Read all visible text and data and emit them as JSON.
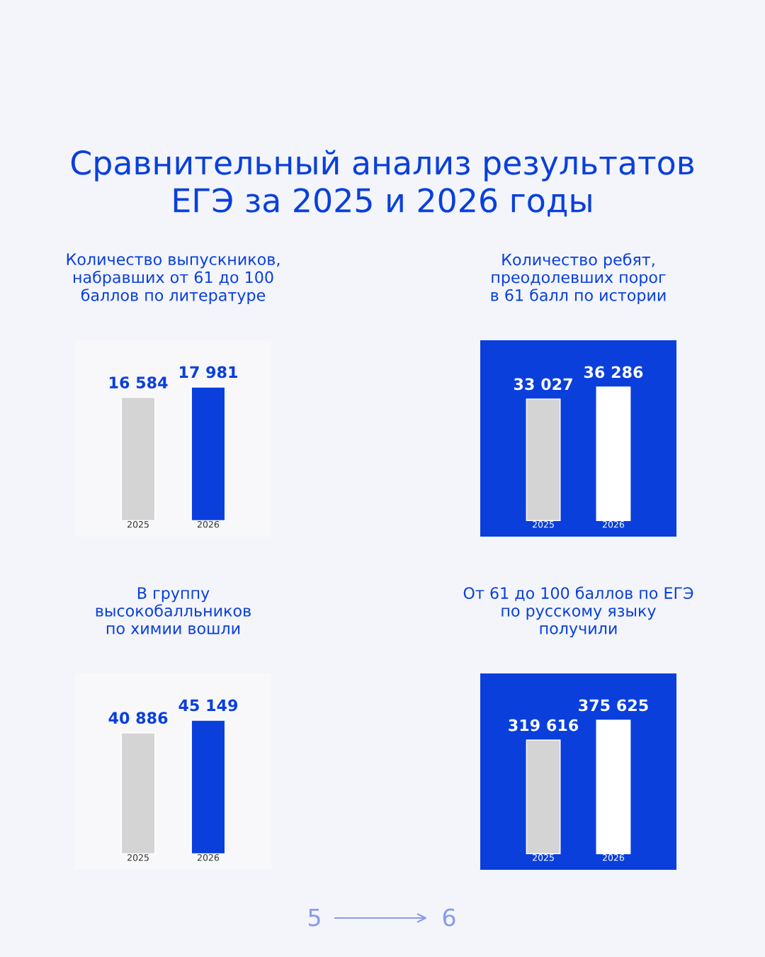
{
  "chart_data": [
    {
      "type": "other",
      "title": "Сравнительный анализ результатов\nЕГЭ за 2025 и 2026 годы",
      "annotations": [
        "5",
        "6"
      ]
    },
    {
      "type": "bar",
      "title": "Количество выпускников,\nнабравших от 61 до 100\nбаллов по литературе",
      "categories": [
        "2025",
        "2026"
      ],
      "values": [
        16584,
        17981
      ],
      "colors": [
        "#d4d4d4",
        "#0a3fdc"
      ],
      "value_labels": [
        "16 584",
        "17 981"
      ],
      "data_labels": true
    },
    {
      "type": "bar",
      "title": "Количество ребят,\nпреодолевших порог\nв 61 балл по истории",
      "categories": [
        "2025",
        "2026"
      ],
      "values": [
        33027,
        36286
      ],
      "colors": [
        "#d4d4d4",
        "#ffffff"
      ],
      "value_labels": [
        "33 027",
        "36 286"
      ],
      "data_labels": true
    },
    {
      "type": "bar",
      "title": "В группу\nвысокобалльников\nпо химии вошли",
      "categories": [
        "2025",
        "2026"
      ],
      "values": [
        40886,
        45149
      ],
      "colors": [
        "#d4d4d4",
        "#0a3fdc"
      ],
      "value_labels": [
        "40 886",
        "45 149"
      ],
      "data_labels": true
    },
    {
      "type": "bar",
      "title": "От 61 до 100 баллов по ЕГЭ\nпо русскому языку\nполучили",
      "categories": [
        "2025",
        "2026"
      ],
      "values": [
        319616,
        375625
      ],
      "colors": [
        "#d4d4d4",
        "#ffffff"
      ],
      "value_labels": [
        "319 616",
        "375 625"
      ],
      "data_labels": true
    }
  ]
}
